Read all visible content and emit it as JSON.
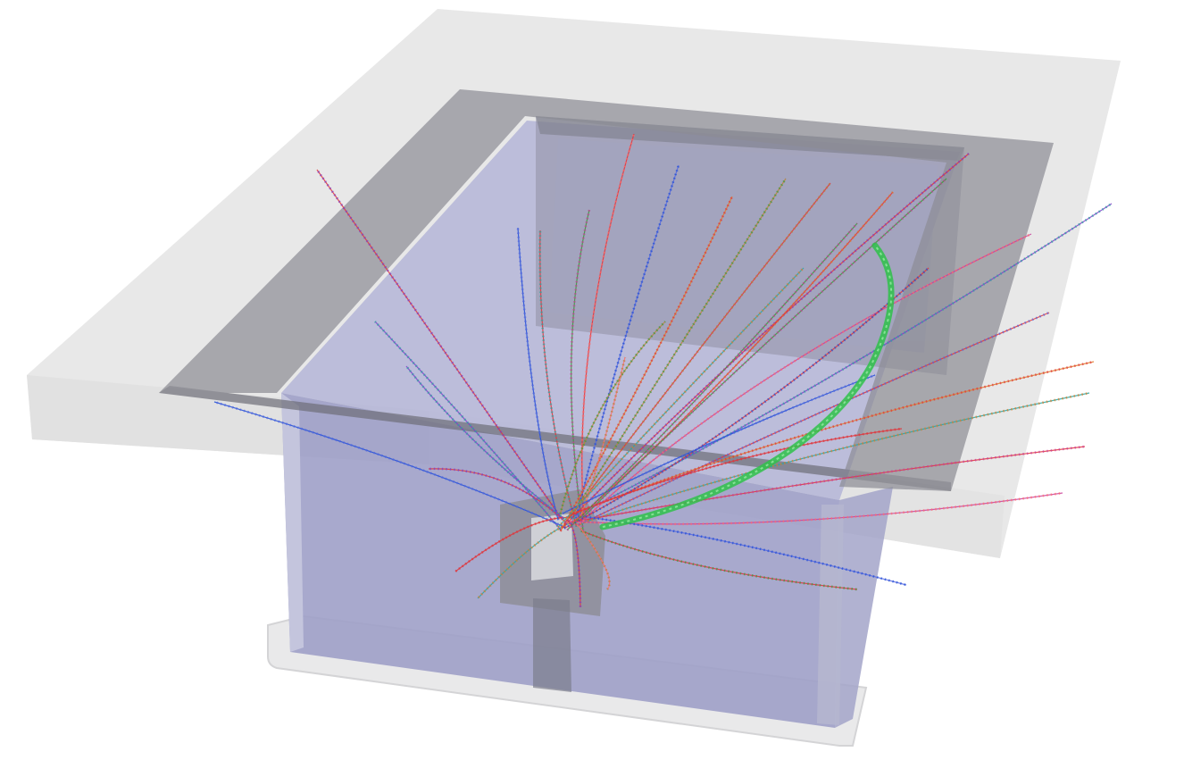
{
  "scene": {
    "background": "#ffffff",
    "colors": {
      "slab": "#d6d6d6",
      "frame": "#8c8c94",
      "chamber": "#9ea0c8",
      "pillar": "#8e8e98",
      "base": "#e9e9ea",
      "track_primary": "#e0343a",
      "track_strong": "#2fc24a"
    },
    "track_palette": [
      "#e0343a",
      "#7b3fc9",
      "#1f4fd6",
      "#e07a2a",
      "#2aa6a0",
      "#3c9a3c",
      "#c93f9b",
      "#5566e0",
      "#b8823a",
      "#ff6f6f"
    ]
  }
}
